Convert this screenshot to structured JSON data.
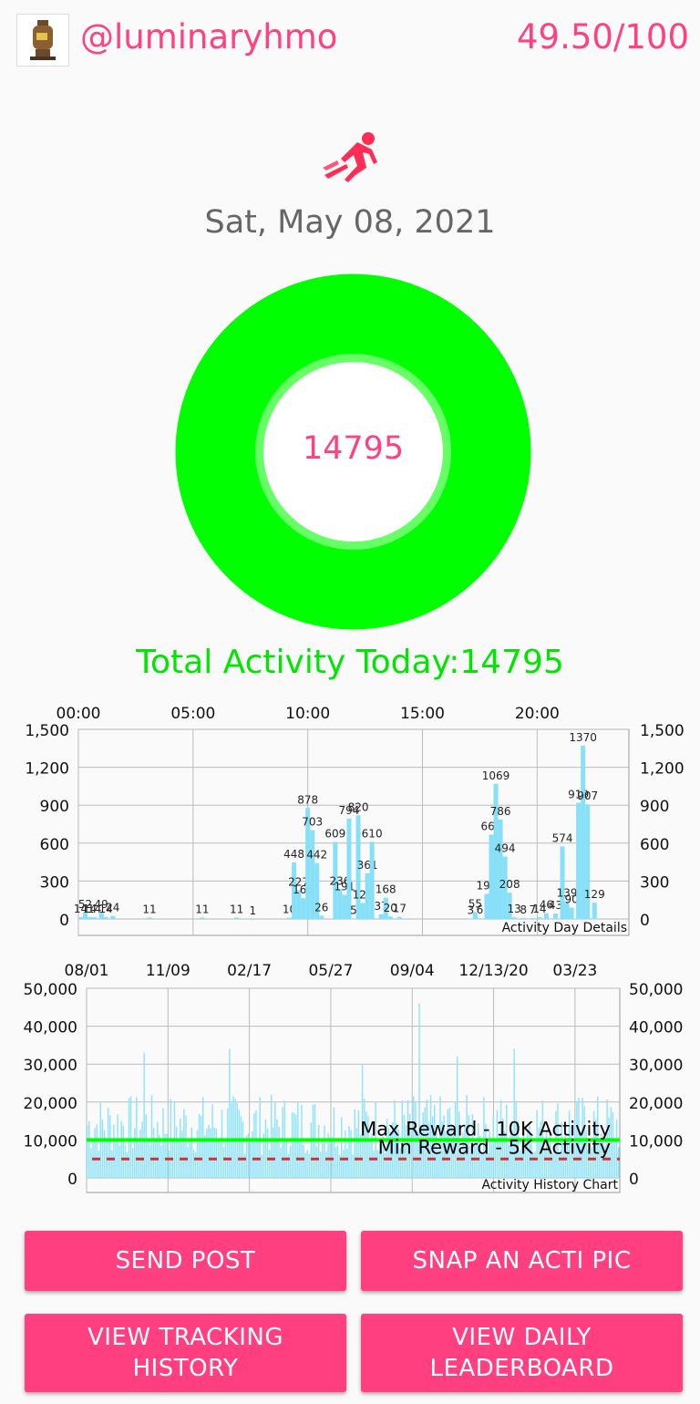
{
  "header": {
    "username": "@luminaryhmo",
    "score": "49.50/100"
  },
  "activity_icon": "running-person-icon",
  "date": "Sat, May 08, 2021",
  "ring": {
    "value": "14795",
    "progress": 1.0,
    "color": "#00ff00"
  },
  "total_label": "Total Activity Today:14795",
  "colors": {
    "accent": "#ff4081",
    "button": "#ff3f80",
    "bar": "#88e0f8",
    "goal": "#00ff00",
    "min_line": "#d32f2f"
  },
  "chart_data": [
    {
      "type": "bar",
      "caption": "Activity Day Details",
      "x_ticks": [
        "00:00",
        "05:00",
        "10:00",
        "15:00",
        "20:00"
      ],
      "y_ticks": [
        "1,500",
        "1,200",
        "900",
        "600",
        "300",
        "0"
      ],
      "ylim": [
        0,
        1500
      ],
      "x_unit": "hours",
      "xlim": [
        0,
        24
      ],
      "points": [
        [
          0.1,
          14
        ],
        [
          0.3,
          52
        ],
        [
          0.5,
          14
        ],
        [
          0.7,
          14
        ],
        [
          1.0,
          49
        ],
        [
          1.2,
          14
        ],
        [
          1.5,
          24
        ],
        [
          3.1,
          11
        ],
        [
          5.4,
          11
        ],
        [
          6.9,
          11
        ],
        [
          7.6,
          1
        ],
        [
          9.2,
          10
        ],
        [
          9.4,
          448
        ],
        [
          9.6,
          227
        ],
        [
          9.8,
          165
        ],
        [
          10.0,
          878
        ],
        [
          10.2,
          703
        ],
        [
          10.4,
          442
        ],
        [
          10.6,
          26
        ],
        [
          11.2,
          609
        ],
        [
          11.4,
          236
        ],
        [
          11.6,
          191
        ],
        [
          11.8,
          794
        ],
        [
          12.0,
          5
        ],
        [
          12.2,
          820
        ],
        [
          12.4,
          126
        ],
        [
          12.6,
          361
        ],
        [
          12.8,
          610
        ],
        [
          13.2,
          37
        ],
        [
          13.4,
          168
        ],
        [
          13.6,
          20
        ],
        [
          14.0,
          17
        ],
        [
          17.1,
          3
        ],
        [
          17.3,
          55
        ],
        [
          17.5,
          6
        ],
        [
          17.8,
          198
        ],
        [
          18.0,
          666
        ],
        [
          18.2,
          1069
        ],
        [
          18.4,
          786
        ],
        [
          18.6,
          494
        ],
        [
          18.8,
          208
        ],
        [
          19.0,
          13
        ],
        [
          19.4,
          8
        ],
        [
          19.8,
          7
        ],
        [
          20.1,
          14
        ],
        [
          20.4,
          46
        ],
        [
          20.8,
          43
        ],
        [
          21.1,
          574
        ],
        [
          21.3,
          139
        ],
        [
          21.5,
          90
        ],
        [
          21.8,
          919
        ],
        [
          22.0,
          1370
        ],
        [
          22.2,
          907
        ],
        [
          22.5,
          129
        ]
      ],
      "data_labels": [
        "14",
        "52",
        "14",
        "14",
        "49",
        "14",
        "24",
        "11",
        "11",
        "11",
        "1",
        "10",
        "448",
        "227",
        "165",
        "878",
        "703",
        "442",
        "26",
        "609",
        "236",
        "191",
        "794",
        "5",
        "820",
        "126",
        "361",
        "610",
        "37",
        "168",
        "20",
        "17",
        "3",
        "55",
        "6",
        "198",
        "666",
        "1069",
        "786",
        "494",
        "208",
        "13",
        "8",
        "7",
        "14",
        "46",
        "43",
        "574",
        "139",
        "90",
        "919",
        "1370",
        "907",
        "129"
      ]
    },
    {
      "type": "bar",
      "caption": "Activity History Chart",
      "x_ticks": [
        "08/01",
        "11/09",
        "02/17",
        "05/27",
        "09/04",
        "12/13/20",
        "03/23"
      ],
      "y_ticks": [
        "50,000",
        "40,000",
        "30,000",
        "20,000",
        "10,000",
        "0"
      ],
      "ylim": [
        0,
        50000
      ],
      "reference_lines": [
        {
          "label": "Max Reward - 10K Activity",
          "value": 10000,
          "style": "solid"
        },
        {
          "label": "Min Reward - 5K Activity",
          "value": 5000,
          "style": "dashed"
        }
      ],
      "days": 281,
      "spikes": [
        [
          30,
          33000
        ],
        [
          75,
          34000
        ],
        [
          145,
          30000
        ],
        [
          175,
          46000
        ],
        [
          195,
          32000
        ],
        [
          225,
          34000
        ]
      ],
      "typical_range": [
        6000,
        22000
      ]
    }
  ],
  "buttons": {
    "send_post": "SEND POST",
    "snap_pic": "SNAP AN ACTI PIC",
    "view_tracking": "VIEW TRACKING\nHISTORY",
    "view_leaderboard": "VIEW DAILY\nLEADERBOARD"
  }
}
